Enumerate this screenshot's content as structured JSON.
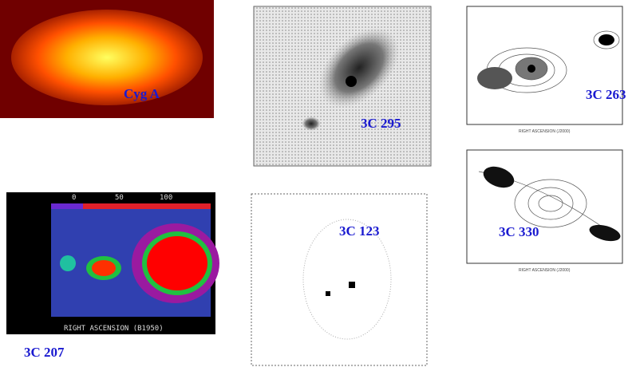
{
  "panels": [
    {
      "label": "Cyg A"
    },
    {
      "label": "3C 295"
    },
    {
      "label": "3C 263",
      "x_axis": "RIGHT ASCENSION (J2000)"
    },
    {
      "label": "3C 330",
      "x_axis": "RIGHT ASCENSION (J2000)"
    },
    {
      "label": "3C 207",
      "x_axis": "RIGHT ASCENSION (B1950)",
      "colorbar_ticks": [
        "0",
        "50",
        "100"
      ]
    },
    {
      "label": "3C 123"
    }
  ]
}
